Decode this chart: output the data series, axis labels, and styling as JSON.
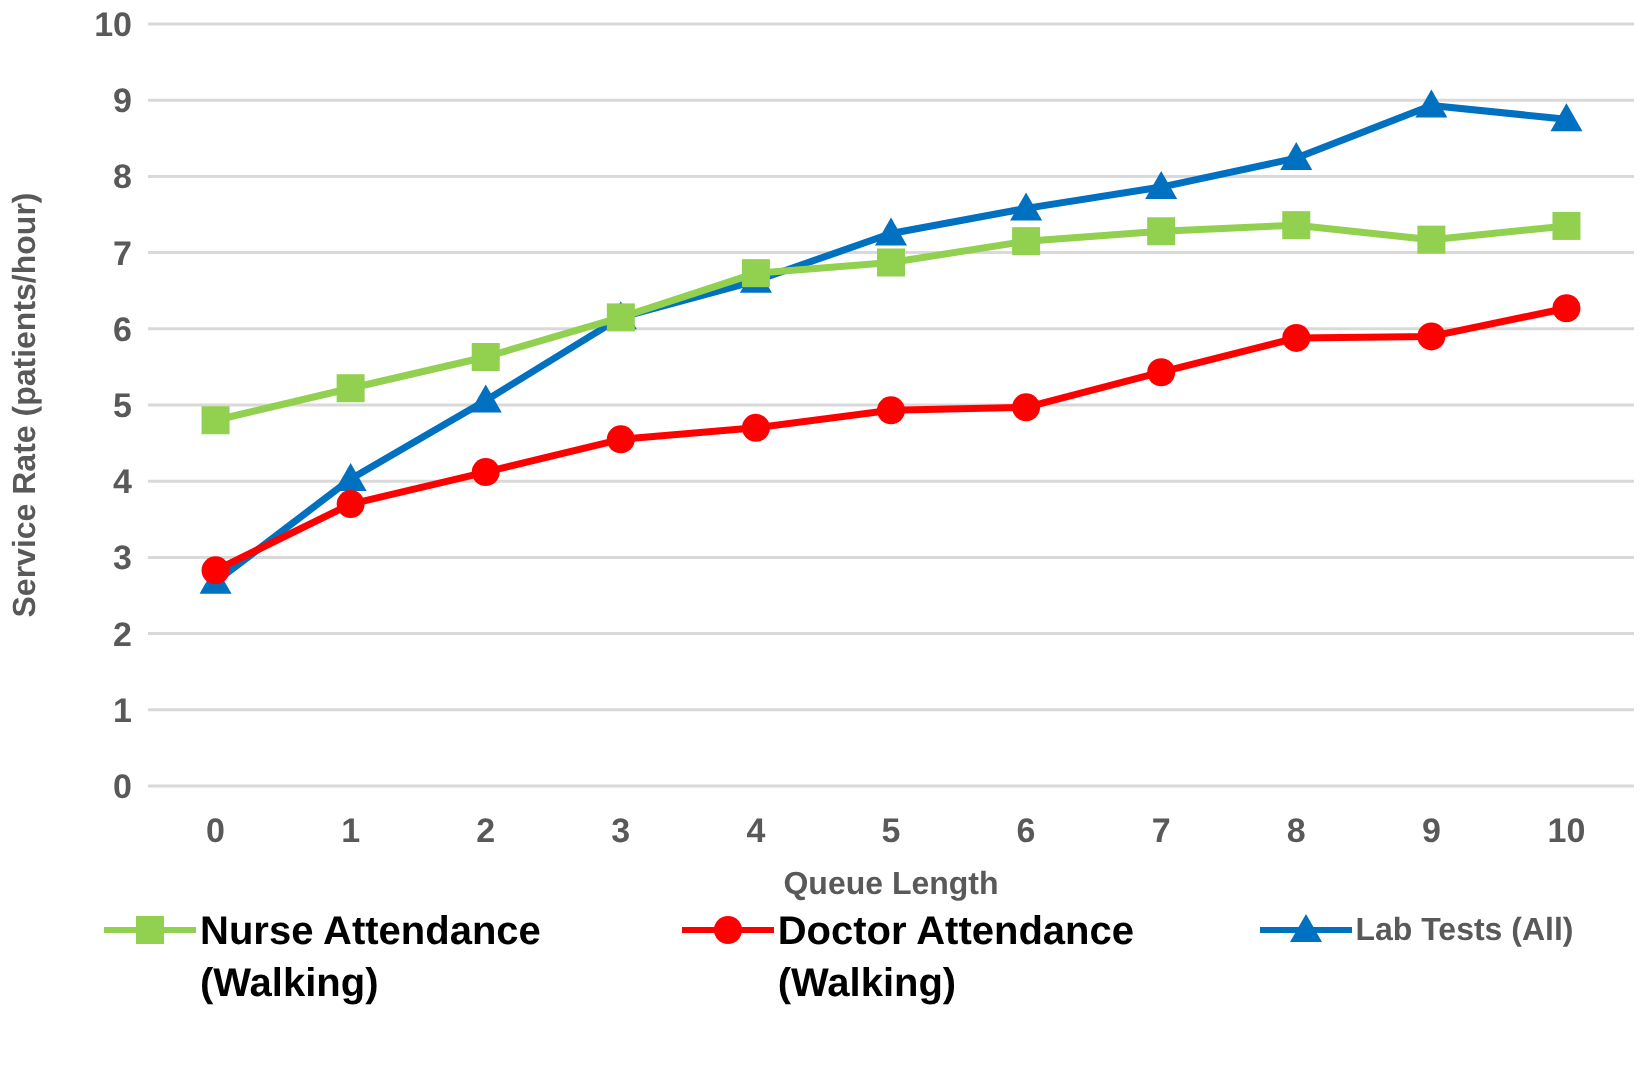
{
  "chart_data": {
    "type": "line",
    "xlabel": "Queue Length",
    "ylabel": "Service Rate (patients/hour)",
    "categories": [
      "0",
      "1",
      "2",
      "3",
      "4",
      "5",
      "6",
      "7",
      "8",
      "9",
      "10"
    ],
    "series": [
      {
        "name": "Nurse Attendance (Walking)",
        "color": "#92d050",
        "marker": "square",
        "values": [
          4.8,
          5.22,
          5.63,
          6.15,
          6.73,
          6.87,
          7.15,
          7.28,
          7.36,
          7.17,
          7.35
        ]
      },
      {
        "name": "Doctor Attendance (Walking)",
        "color": "#ff0000",
        "marker": "circle",
        "values": [
          2.83,
          3.7,
          4.12,
          4.55,
          4.7,
          4.93,
          4.97,
          5.43,
          5.88,
          5.9,
          6.27
        ]
      },
      {
        "name": "Lab Tests (All)",
        "color": "#0070c0",
        "marker": "triangle",
        "values": [
          2.68,
          4.03,
          5.06,
          6.15,
          6.63,
          7.25,
          7.58,
          7.86,
          8.24,
          8.93,
          8.75
        ]
      }
    ],
    "ylim": [
      0,
      10
    ],
    "yticks": [
      0,
      1,
      2,
      3,
      4,
      5,
      6,
      7,
      8,
      9,
      10
    ],
    "grid": "y",
    "legend": "bottom",
    "line_style": "solid"
  }
}
